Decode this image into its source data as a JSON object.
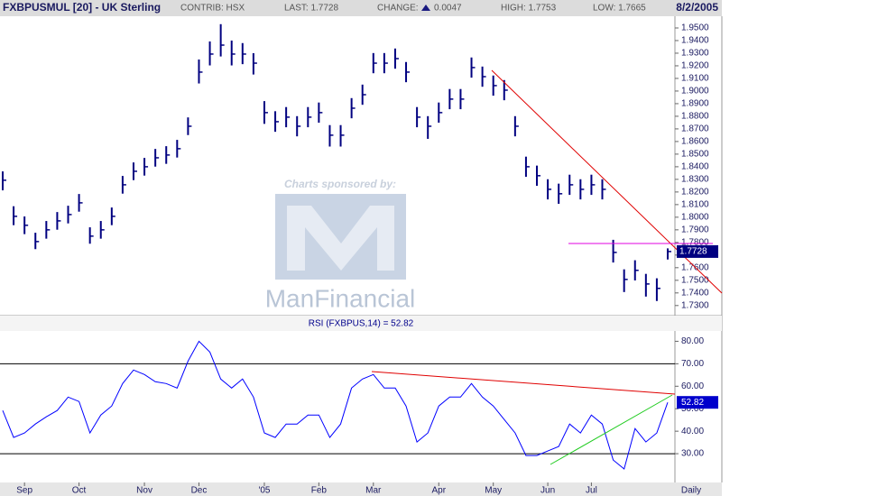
{
  "header": {
    "symbol": "FXBPUSMUL [20] - UK Sterling",
    "contrib": "CONTRIB: HSX",
    "last": "LAST: 1.7728",
    "change_label": "CHANGE:",
    "change": "0.0047",
    "high": "HIGH: 1.7753",
    "low": "LOW: 1.7665",
    "date": "8/2/2005"
  },
  "watermark": {
    "sponsor": "Charts sponsored by:",
    "brand": "ManFinancial"
  },
  "chart_data": [
    {
      "type": "hlc",
      "color": "#000080",
      "close": [
        1.8293,
        1.8007,
        1.7936,
        1.7807,
        1.79,
        1.7971,
        1.8021,
        1.8114,
        1.785,
        1.79,
        1.8007,
        1.8257,
        1.8364,
        1.84,
        1.8471,
        1.8493,
        1.8543,
        1.8721,
        1.915,
        1.9293,
        1.9364,
        1.9293,
        1.9293,
        1.9221,
        1.8829,
        1.8757,
        1.8793,
        1.8721,
        1.8793,
        1.8829,
        1.865,
        1.865,
        1.8864,
        1.8971,
        1.9221,
        1.9221,
        1.9257,
        1.915,
        1.8793,
        1.8721,
        1.8829,
        1.8936,
        1.8936,
        1.9186,
        1.9114,
        1.9043,
        1.9007,
        1.8721,
        1.84,
        1.8329,
        1.8221,
        1.8186,
        1.8257,
        1.8221,
        1.8257,
        1.8221,
        1.7721,
        1.7507,
        1.7579,
        1.7471,
        1.7436,
        1.7728
      ],
      "high": [
        1.8363,
        1.8087,
        1.8006,
        1.7877,
        1.797,
        1.8041,
        1.8091,
        1.8184,
        1.792,
        1.797,
        1.8077,
        1.8327,
        1.8434,
        1.847,
        1.8541,
        1.8563,
        1.8613,
        1.8791,
        1.925,
        1.9393,
        1.953,
        1.94,
        1.938,
        1.93,
        1.892,
        1.884,
        1.8873,
        1.8801,
        1.8873,
        1.8909,
        1.873,
        1.873,
        1.8944,
        1.9051,
        1.9301,
        1.9301,
        1.9337,
        1.923,
        1.8873,
        1.8801,
        1.8909,
        1.9016,
        1.9016,
        1.9266,
        1.9194,
        1.9123,
        1.9087,
        1.8801,
        1.848,
        1.8409,
        1.8301,
        1.8266,
        1.8337,
        1.8301,
        1.8337,
        1.8301,
        1.7821,
        1.7587,
        1.7659,
        1.7551,
        1.7516,
        1.7753
      ],
      "low": [
        1.8213,
        1.7937,
        1.7866,
        1.7747,
        1.783,
        1.7901,
        1.7951,
        1.8044,
        1.779,
        1.783,
        1.7937,
        1.8187,
        1.8294,
        1.833,
        1.8401,
        1.8423,
        1.8473,
        1.8651,
        1.906,
        1.9203,
        1.9274,
        1.9203,
        1.9213,
        1.9131,
        1.874,
        1.8677,
        1.8713,
        1.8641,
        1.8713,
        1.8749,
        1.856,
        1.856,
        1.8784,
        1.8891,
        1.9141,
        1.9141,
        1.9177,
        1.907,
        1.8713,
        1.8621,
        1.8749,
        1.8856,
        1.8856,
        1.9106,
        1.9034,
        1.8963,
        1.8927,
        1.8641,
        1.832,
        1.8249,
        1.8141,
        1.8106,
        1.8177,
        1.8141,
        1.8177,
        1.8141,
        1.7641,
        1.7407,
        1.7499,
        1.7371,
        1.7336,
        1.7665
      ],
      "ylim": [
        1.722,
        1.965
      ],
      "yticks": [
        {
          "value": 1.73,
          "label": "1.7300"
        },
        {
          "value": 1.74,
          "label": "1.7400"
        },
        {
          "value": 1.75,
          "label": "1.7500"
        },
        {
          "value": 1.76,
          "label": "1.7600"
        },
        {
          "value": 1.77,
          "label": "1.7700"
        },
        {
          "value": 1.78,
          "label": "1.7800"
        },
        {
          "value": 1.79,
          "label": "1.7900"
        },
        {
          "value": 1.8,
          "label": "1.8000"
        },
        {
          "value": 1.81,
          "label": "1.8100"
        },
        {
          "value": 1.82,
          "label": "1.8200"
        },
        {
          "value": 1.83,
          "label": "1.8300"
        },
        {
          "value": 1.84,
          "label": "1.8400"
        },
        {
          "value": 1.85,
          "label": "1.8500"
        },
        {
          "value": 1.86,
          "label": "1.8600"
        },
        {
          "value": 1.87,
          "label": "1.8700"
        },
        {
          "value": 1.88,
          "label": "1.8800"
        },
        {
          "value": 1.89,
          "label": "1.8900"
        },
        {
          "value": 1.9,
          "label": "1.9000"
        },
        {
          "value": 1.91,
          "label": "1.9100"
        },
        {
          "value": 1.92,
          "label": "1.9200"
        },
        {
          "value": 1.93,
          "label": "1.9300"
        },
        {
          "value": 1.94,
          "label": "1.9400"
        },
        {
          "value": 1.95,
          "label": "1.9500"
        }
      ]
    },
    {
      "type": "line",
      "title": "RSI (FXBPUS,14) = 52.82",
      "color": "#0000ff",
      "x_label": "Daily",
      "categories": [
        null,
        null,
        "Sep",
        null,
        null,
        null,
        null,
        "Oct",
        null,
        null,
        null,
        null,
        null,
        "Nov",
        null,
        null,
        null,
        null,
        "Dec",
        null,
        null,
        null,
        null,
        null,
        "'05",
        null,
        null,
        null,
        null,
        "Feb",
        null,
        null,
        null,
        null,
        "Mar",
        null,
        null,
        null,
        null,
        null,
        "Apr",
        null,
        null,
        null,
        null,
        "May",
        null,
        null,
        null,
        null,
        "Jun",
        null,
        null,
        null,
        "Jul",
        null,
        null,
        null,
        null,
        null,
        null,
        null
      ],
      "values": [
        49.2,
        37.2,
        39.2,
        43.2,
        46.4,
        49.2,
        55.2,
        53.2,
        39.2,
        47.2,
        51.2,
        61.2,
        67.2,
        65.2,
        62,
        61.2,
        59.2,
        71.2,
        80,
        75.2,
        63.2,
        59.2,
        63.2,
        55.2,
        39.2,
        37.2,
        43.2,
        43.2,
        47.2,
        47.2,
        37.2,
        43.2,
        59.2,
        63.2,
        65.2,
        59.2,
        59.2,
        51.2,
        35.2,
        39.2,
        51.2,
        55.2,
        55.2,
        61.2,
        55.2,
        51.2,
        45.2,
        39.2,
        29.2,
        29.2,
        31.2,
        33.2,
        43.2,
        39.2,
        47.2,
        43.2,
        27.2,
        23.2,
        41.2,
        35.2,
        39.2,
        52.82
      ],
      "ylim": [
        20,
        89
      ],
      "yticks": [
        {
          "value": 30,
          "label": "30.00"
        },
        {
          "value": 40,
          "label": "40.00"
        },
        {
          "value": 50,
          "label": "50.00"
        },
        {
          "value": 60,
          "label": "60.00"
        },
        {
          "value": 70,
          "label": "70.00"
        },
        {
          "value": 80,
          "label": "80.00"
        }
      ],
      "reference_lines": [
        30,
        70
      ]
    }
  ]
}
